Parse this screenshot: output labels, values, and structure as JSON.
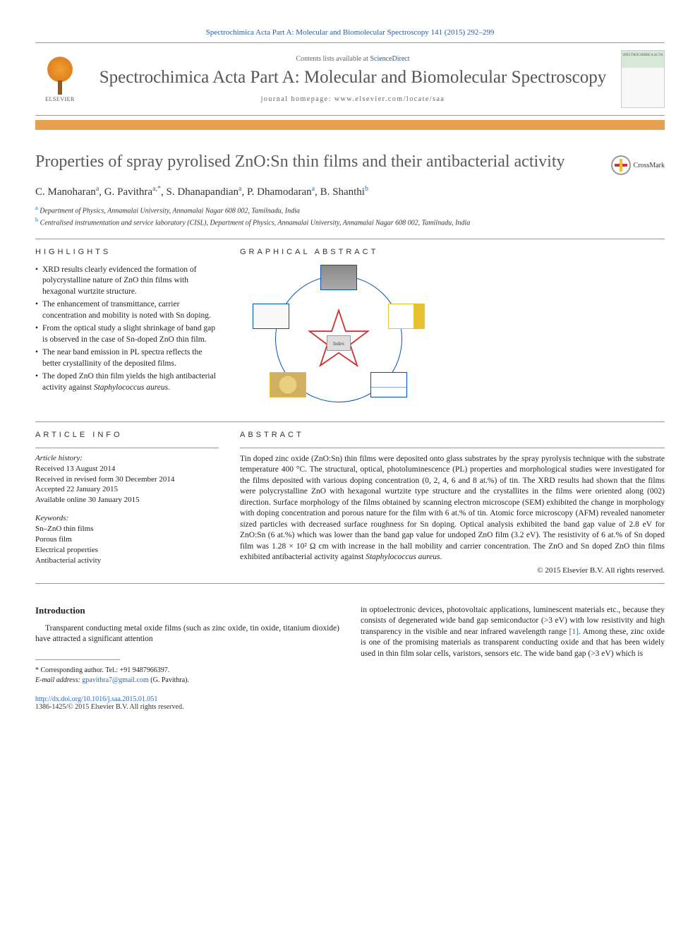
{
  "citation": "Spectrochimica Acta Part A: Molecular and Biomolecular Spectroscopy 141 (2015) 292–299",
  "header": {
    "contents_prefix": "Contents lists available at ",
    "contents_link": "ScienceDirect",
    "journal_name": "Spectrochimica Acta Part A: Molecular and Biomolecular Spectroscopy",
    "homepage_prefix": "journal homepage: ",
    "homepage_url": "www.elsevier.com/locate/saa",
    "elsevier_label": "ELSEVIER",
    "cover_label": "SPECTROCHIMICA ACTA"
  },
  "crossmark_label": "CrossMark",
  "title": "Properties of spray pyrolised ZnO:Sn thin films and their antibacterial activity",
  "authors_html": "C. Manoharan<sup>a</sup>, G. Pavithra<sup>a,*</sup>, S. Dhanapandian<sup>a</sup>, P. Dhamodaran<sup>a</sup>, B. Shanthi<sup>b</sup>",
  "affiliations": [
    {
      "sup": "a",
      "text": "Department of Physics, Annamalai University, Annamalai Nagar 608 002, Tamilnadu, India"
    },
    {
      "sup": "b",
      "text": "Centralised instrumentation and service laboratory (CISL), Department of Physics, Annamalai University, Annamalai Nagar 608 002, Tamilnadu, India"
    }
  ],
  "highlights": {
    "label": "HIGHLIGHTS",
    "items": [
      "XRD results clearly evidenced the formation of polycrystalline nature of ZnO thin films with hexagonal wurtzite structure.",
      "The enhancement of transmittance, carrier concentration and mobility is noted with Sn doping.",
      "From the optical study a slight shrinkage of band gap is observed in the case of Sn-doped ZnO thin film.",
      "The near band emission in PL spectra reflects the better crystallinity of the deposited films.",
      "The doped ZnO thin film yields the high antibacterial activity against <em>Staphylococcus aureus</em>."
    ]
  },
  "graphical_abstract": {
    "label": "GRAPHICAL ABSTRACT",
    "center_label": "Index",
    "circle_color": "#0050c0",
    "star_color": "#d03030",
    "thumbs": [
      {
        "pos": "t1",
        "border": "#0050c0"
      },
      {
        "pos": "t2",
        "border": "#e8c030"
      },
      {
        "pos": "t3",
        "border": "#0050c0"
      },
      {
        "pos": "t4",
        "border": "#e8c030"
      },
      {
        "pos": "t5",
        "border": "#0050c0"
      }
    ]
  },
  "article_info": {
    "label": "ARTICLE INFO",
    "history_label": "Article history:",
    "history": [
      "Received 13 August 2014",
      "Received in revised form 30 December 2014",
      "Accepted 22 January 2015",
      "Available online 30 January 2015"
    ],
    "keywords_label": "Keywords:",
    "keywords": [
      "Sn–ZnO thin films",
      "Porous film",
      "Electrical properties",
      "Antibacterial activity"
    ]
  },
  "abstract": {
    "label": "ABSTRACT",
    "text": "Tin doped zinc oxide (ZnO:Sn) thin films were deposited onto glass substrates by the spray pyrolysis technique with the substrate temperature 400 °C. The structural, optical, photoluminescence (PL) properties and morphological studies were investigated for the films deposited with various doping concentration (0, 2, 4, 6 and 8 at.%) of tin. The XRD results had shown that the films were polycrystalline ZnO with hexagonal wurtzite type structure and the crystallites in the films were oriented along (002) direction. Surface morphology of the films obtained by scanning electron microscope (SEM) exhibited the change in morphology with doping concentration and porous nature for the film with 6 at.% of tin. Atomic force microscopy (AFM) revealed nanometer sized particles with decreased surface roughness for Sn doping. Optical analysis exhibited the band gap value of 2.8 eV for ZnO:Sn (6 at.%) which was lower than the band gap value for undoped ZnO film (3.2 eV). The resistivity of 6 at.% of Sn doped film was 1.28 × 10² Ω cm with increase in the hall mobility and carrier concentration. The ZnO and Sn doped ZnO thin films exhibited antibacterial activity against <em>Staphylococcus aureus</em>.",
    "copyright": "© 2015 Elsevier B.V. All rights reserved."
  },
  "introduction": {
    "heading": "Introduction",
    "col1": "Transparent conducting metal oxide films (such as zinc oxide, tin oxide, titanium dioxide) have attracted a significant attention",
    "col2": "in optoelectronic devices, photovoltaic applications, luminescent materials etc., because they consists of degenerated wide band gap semiconductor (>3 eV) with low resistivity and high transparency in the visible and near infrared wavelength range <a>[1]</a>. Among these, zinc oxide is one of the promising materials as transparent conducting oxide and that has been widely used in thin film solar cells, varistors, sensors etc. The wide band gap (>3 eV) which is"
  },
  "corresponding": {
    "marker": "* Corresponding author. Tel.: +91 9487966397.",
    "email_label": "E-mail address: ",
    "email": "gpavithra7@gmail.com",
    "email_suffix": " (G. Pavithra)."
  },
  "footer": {
    "doi": "http://dx.doi.org/10.1016/j.saa.2015.01.051",
    "issn_copyright": "1386-1425/© 2015 Elsevier B.V. All rights reserved."
  },
  "colors": {
    "link": "#2a6aba",
    "orange_bar": "#e8a050",
    "text": "#222222"
  }
}
